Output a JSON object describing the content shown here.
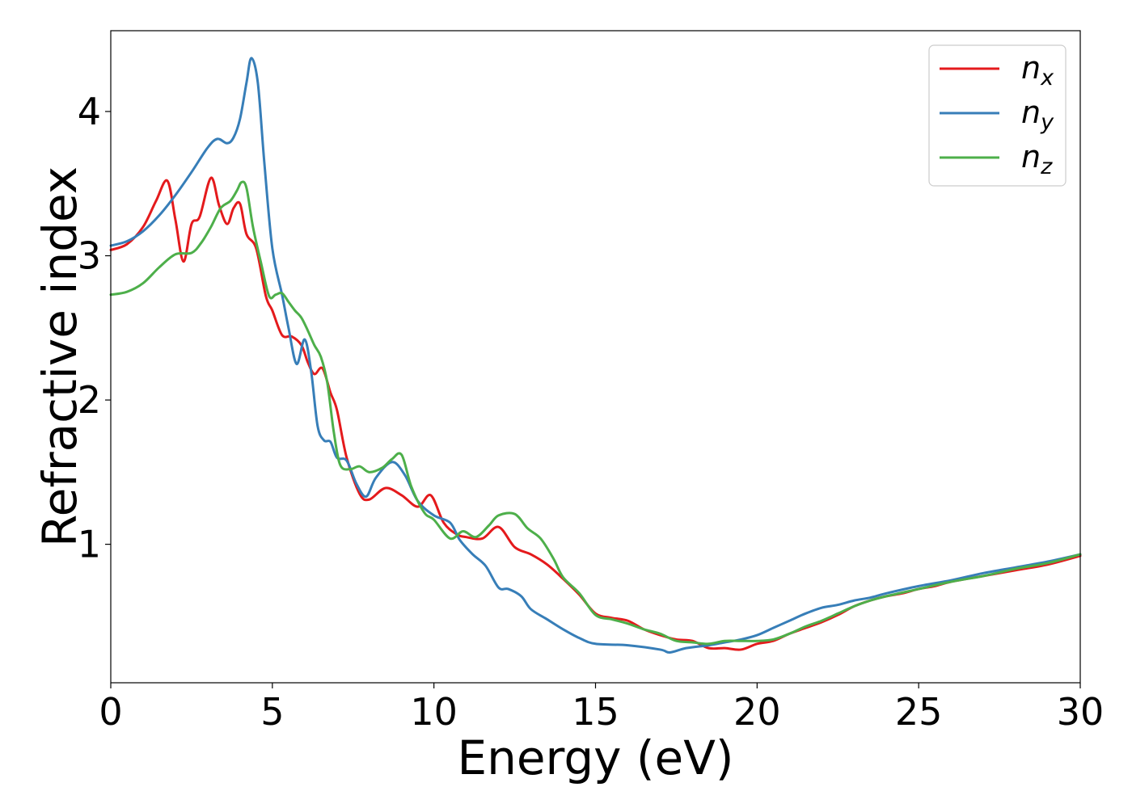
{
  "chart_data": {
    "type": "line",
    "xlabel": "Energy (eV)",
    "ylabel": "Refractive index",
    "xlim": [
      0,
      30
    ],
    "ylim": [
      0.04,
      4.56
    ],
    "xticks": [
      0,
      5,
      10,
      15,
      20,
      25,
      30
    ],
    "yticks": [
      1,
      2,
      3,
      4
    ],
    "grid": false,
    "legend_position": "top-right",
    "series": [
      {
        "name": "n_x",
        "legend_main": "n",
        "legend_sub": "x",
        "color": "#e41a1c",
        "x": [
          0,
          0.5,
          1.0,
          1.4,
          1.75,
          2.0,
          2.25,
          2.5,
          2.75,
          3.1,
          3.35,
          3.6,
          3.8,
          4.0,
          4.2,
          4.5,
          4.8,
          5.0,
          5.3,
          5.6,
          5.9,
          6.1,
          6.3,
          6.55,
          6.8,
          7.0,
          7.3,
          7.7,
          8.0,
          8.5,
          9.0,
          9.5,
          9.9,
          10.3,
          10.7,
          11.0,
          11.5,
          12.0,
          12.5,
          13.0,
          13.5,
          14.0,
          14.5,
          15.0,
          15.5,
          16.0,
          16.5,
          17.0,
          17.5,
          18.0,
          18.5,
          19.0,
          19.5,
          20.0,
          20.5,
          21.0,
          21.5,
          22.0,
          22.5,
          23.0,
          23.5,
          24.0,
          24.5,
          25.0,
          25.5,
          26.0,
          27.0,
          28.0,
          29.0,
          30.0
        ],
        "y": [
          3.04,
          3.08,
          3.2,
          3.38,
          3.52,
          3.25,
          2.96,
          3.22,
          3.27,
          3.54,
          3.35,
          3.22,
          3.33,
          3.36,
          3.15,
          3.05,
          2.72,
          2.62,
          2.45,
          2.44,
          2.38,
          2.26,
          2.18,
          2.22,
          2.05,
          1.93,
          1.6,
          1.35,
          1.31,
          1.39,
          1.34,
          1.26,
          1.34,
          1.15,
          1.07,
          1.05,
          1.04,
          1.12,
          0.98,
          0.93,
          0.86,
          0.76,
          0.65,
          0.52,
          0.49,
          0.47,
          0.41,
          0.37,
          0.34,
          0.33,
          0.28,
          0.28,
          0.27,
          0.31,
          0.33,
          0.38,
          0.42,
          0.46,
          0.51,
          0.57,
          0.61,
          0.64,
          0.66,
          0.69,
          0.71,
          0.74,
          0.78,
          0.82,
          0.86,
          0.92
        ]
      },
      {
        "name": "n_y",
        "legend_main": "n",
        "legend_sub": "y",
        "color": "#377eb8",
        "x": [
          0,
          0.5,
          1.0,
          1.5,
          2.0,
          2.5,
          3.0,
          3.3,
          3.6,
          3.8,
          4.0,
          4.2,
          4.35,
          4.55,
          4.75,
          5.0,
          5.3,
          5.5,
          5.75,
          6.0,
          6.2,
          6.4,
          6.6,
          6.8,
          7.0,
          7.3,
          7.6,
          7.9,
          8.2,
          8.7,
          9.1,
          9.5,
          10.0,
          10.5,
          10.8,
          11.2,
          11.6,
          12.0,
          12.3,
          12.7,
          13.0,
          13.5,
          14.0,
          14.5,
          15.0,
          16.0,
          17.0,
          17.3,
          17.8,
          18.5,
          19.0,
          19.5,
          20.0,
          20.5,
          21.0,
          21.5,
          22.0,
          22.5,
          23.0,
          23.5,
          24.0,
          25.0,
          26.0,
          27.0,
          28.0,
          29.0,
          30.0
        ],
        "y": [
          3.07,
          3.1,
          3.17,
          3.28,
          3.42,
          3.58,
          3.75,
          3.81,
          3.78,
          3.82,
          3.95,
          4.2,
          4.37,
          4.2,
          3.65,
          3.05,
          2.73,
          2.5,
          2.25,
          2.42,
          2.2,
          1.82,
          1.72,
          1.71,
          1.6,
          1.58,
          1.42,
          1.33,
          1.46,
          1.57,
          1.48,
          1.3,
          1.2,
          1.15,
          1.03,
          0.93,
          0.85,
          0.7,
          0.69,
          0.64,
          0.55,
          0.48,
          0.41,
          0.35,
          0.31,
          0.3,
          0.27,
          0.25,
          0.28,
          0.3,
          0.32,
          0.34,
          0.37,
          0.42,
          0.47,
          0.52,
          0.56,
          0.58,
          0.61,
          0.63,
          0.66,
          0.71,
          0.75,
          0.8,
          0.84,
          0.88,
          0.93
        ]
      },
      {
        "name": "n_z",
        "legend_main": "n",
        "legend_sub": "z",
        "color": "#4daf4a",
        "x": [
          0,
          0.5,
          1.0,
          1.5,
          2.0,
          2.5,
          2.8,
          3.1,
          3.4,
          3.7,
          3.9,
          4.05,
          4.2,
          4.4,
          4.65,
          4.9,
          5.1,
          5.3,
          5.5,
          5.7,
          5.9,
          6.1,
          6.3,
          6.5,
          6.7,
          6.9,
          7.1,
          7.4,
          7.7,
          8.0,
          8.4,
          8.7,
          9.0,
          9.3,
          9.7,
          10.0,
          10.5,
          10.9,
          11.3,
          11.7,
          12.0,
          12.5,
          12.9,
          13.3,
          13.7,
          14.0,
          14.5,
          15.0,
          15.5,
          16.0,
          16.5,
          17.0,
          17.5,
          18.0,
          18.5,
          19.0,
          19.5,
          20.0,
          20.5,
          21.0,
          21.5,
          22.0,
          22.5,
          23.0,
          23.5,
          24.0,
          25.0,
          26.0,
          27.0,
          28.0,
          29.0,
          30.0
        ],
        "y": [
          2.73,
          2.75,
          2.81,
          2.92,
          3.01,
          3.02,
          3.09,
          3.2,
          3.33,
          3.38,
          3.45,
          3.51,
          3.47,
          3.2,
          2.95,
          2.72,
          2.73,
          2.74,
          2.68,
          2.62,
          2.57,
          2.48,
          2.38,
          2.3,
          2.12,
          1.78,
          1.55,
          1.52,
          1.54,
          1.5,
          1.53,
          1.59,
          1.62,
          1.4,
          1.22,
          1.17,
          1.04,
          1.09,
          1.05,
          1.13,
          1.2,
          1.21,
          1.11,
          1.04,
          0.9,
          0.77,
          0.66,
          0.51,
          0.48,
          0.45,
          0.41,
          0.38,
          0.33,
          0.32,
          0.31,
          0.33,
          0.33,
          0.33,
          0.34,
          0.38,
          0.43,
          0.47,
          0.52,
          0.57,
          0.61,
          0.64,
          0.69,
          0.74,
          0.78,
          0.83,
          0.87,
          0.93
        ]
      }
    ]
  }
}
